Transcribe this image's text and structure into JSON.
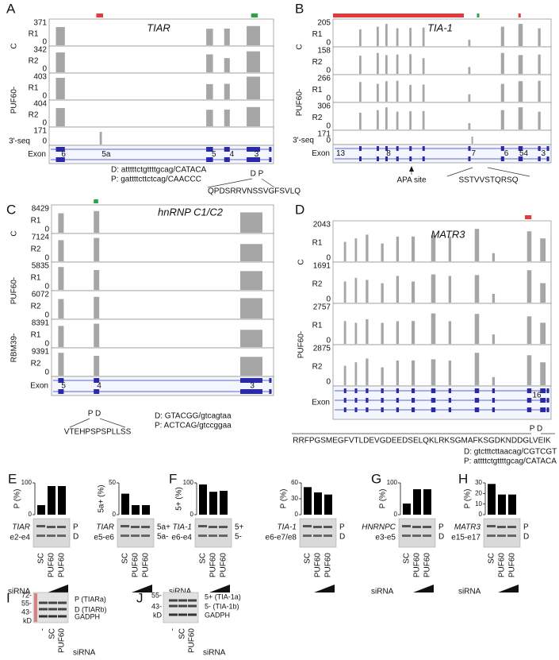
{
  "panels": {
    "A": {
      "letter": "A",
      "gene": "TIAR",
      "groups": [
        {
          "name": "C",
          "reps": [
            {
              "rep": "R1",
              "max": 371
            },
            {
              "rep": "R2",
              "max": 342
            }
          ]
        },
        {
          "name": "PUF60-",
          "reps": [
            {
              "rep": "R1",
              "max": 403
            },
            {
              "rep": "R2",
              "max": 404
            }
          ]
        }
      ],
      "seq": {
        "name": "3'-seq",
        "max": 171
      },
      "zero": "0",
      "exon": "Exon",
      "exons": [
        "6",
        "5a",
        "5",
        "4",
        "3"
      ],
      "splice": [
        "D: atttttctgttttgcag/CATACA",
        "P: gattttcttctcag/CAACCC"
      ],
      "sites": "D P",
      "peptide": "QPDSRRVNSSVGFSVLQ"
    },
    "B": {
      "letter": "B",
      "gene": "TIA-1",
      "groups": [
        {
          "name": "C",
          "reps": [
            {
              "rep": "R1",
              "max": 205
            },
            {
              "rep": "R2",
              "max": 158
            }
          ]
        },
        {
          "name": "PUF60-",
          "reps": [
            {
              "rep": "R1",
              "max": 266
            },
            {
              "rep": "R2",
              "max": 306
            }
          ]
        }
      ],
      "seq": {
        "name": "3'-seq",
        "max": 171
      },
      "zero": "0",
      "exon": "Exon",
      "exons": [
        "13",
        "8",
        "7",
        "6",
        "54",
        "3"
      ],
      "apa": "APA site",
      "peptide": "SSTVVSTQRSQ"
    },
    "C": {
      "letter": "C",
      "gene": "hnRNP C1/C2",
      "groups": [
        {
          "name": "C",
          "reps": [
            {
              "rep": "R1",
              "max": 8429
            },
            {
              "rep": "R2",
              "max": 7124
            }
          ]
        },
        {
          "name": "PUF60-",
          "reps": [
            {
              "rep": "R1",
              "max": 5835
            },
            {
              "rep": "R2",
              "max": 6072
            }
          ]
        },
        {
          "name": "RBM39-",
          "reps": [
            {
              "rep": "R1",
              "max": 8391
            },
            {
              "rep": "R2",
              "max": 9391
            }
          ]
        }
      ],
      "zero": "0",
      "exon": "Exon",
      "exons": [
        "5",
        "4",
        "3"
      ],
      "splice": [
        "D: GTACGG/gtcagtaa",
        "P: ACTCAG/gtccggaa"
      ],
      "sites": "P D",
      "peptide": "VTEHPSPSPLLSS"
    },
    "D": {
      "letter": "D",
      "gene": "MATR3",
      "groups": [
        {
          "name": "C",
          "reps": [
            {
              "rep": "R1",
              "max": 2043
            },
            {
              "rep": "R2",
              "max": 1691
            }
          ]
        },
        {
          "name": "PUF60-",
          "reps": [
            {
              "rep": "R1",
              "max": 2757
            },
            {
              "rep": "R2",
              "max": 2875
            }
          ]
        }
      ],
      "zero": "0",
      "exon": "Exon",
      "exons": [
        "16"
      ],
      "splice": [
        "D: gtctttcttaacag/CGTCGT",
        "P: attttctgttttgcag/CATACA"
      ],
      "sites": "P D",
      "peptide": "RRFPGSMEGFVTLDEVGDEEDSELQKLRKSGMAFKSGDKNDDGLVEIK"
    }
  },
  "bar_panels": [
    {
      "letter": "E",
      "charts": [
        {
          "ylabel": "P (%)",
          "ylim": [
            0,
            100
          ],
          "yticks": [
            0,
            100
          ],
          "values": [
            30,
            90,
            90
          ],
          "gene": "TIAR",
          "region": "e2-e4",
          "bands": [
            "P",
            "D"
          ]
        },
        {
          "ylabel": "5a+ (%)",
          "ylim": [
            0,
            50
          ],
          "yticks": [
            0,
            50
          ],
          "values": [
            33,
            15,
            15
          ],
          "gene": "TIAR",
          "region": "e5-e6",
          "bands": [
            "5a+",
            "5a-"
          ]
        }
      ]
    },
    {
      "letter": "F",
      "charts": [
        {
          "ylabel": "5+ (%)",
          "ylim": [
            0,
            100
          ],
          "yticks": [
            0,
            100
          ],
          "values": [
            95,
            72,
            75
          ],
          "gene": "TIA-1",
          "region": "e6-e4",
          "bands": [
            "5+",
            "5-"
          ]
        },
        {
          "ylabel": "P (%)",
          "ylim": [
            0,
            60
          ],
          "yticks": [
            0,
            30,
            60
          ],
          "values": [
            52,
            42,
            38
          ],
          "gene": "TIA-1",
          "region": "e6-e7/e8",
          "bands": [
            "P",
            "D"
          ]
        }
      ]
    },
    {
      "letter": "G",
      "charts": [
        {
          "ylabel": "P (%)",
          "ylim": [
            0,
            100
          ],
          "yticks": [
            0,
            100
          ],
          "values": [
            35,
            80,
            80
          ],
          "gene": "HNRNPC",
          "region": "e3-e5",
          "bands": [
            "P",
            "D"
          ]
        }
      ]
    },
    {
      "letter": "H",
      "charts": [
        {
          "ylabel": "P (%)",
          "ylim": [
            0,
            30
          ],
          "yticks": [
            0,
            10,
            20,
            30
          ],
          "values": [
            29,
            19,
            19
          ],
          "gene": "MATR3",
          "region": "e15-e17",
          "bands": [
            "P",
            "D"
          ]
        }
      ]
    }
  ],
  "sirna": "siRNA",
  "lanes": [
    "SC",
    "PUF60",
    "PUF60"
  ],
  "blots": [
    {
      "letter": "I",
      "markers": [
        "72-",
        "55-",
        "43-"
      ],
      "unit": "kD",
      "bands": [
        "P (TIARa)",
        "D (TIARb)",
        "GADPH"
      ],
      "lanes": [
        "-",
        "SC",
        "PUF60"
      ],
      "sirna": "siRNA"
    },
    {
      "letter": "J",
      "markers": [
        "55-",
        "43-"
      ],
      "unit": "kD",
      "bands": [
        "5+ (TIA-1a)",
        "5- (TIA-1b)",
        "GADPH"
      ],
      "lanes": [
        "-",
        "SC",
        "PUF60"
      ],
      "sirna": "siRNA"
    }
  ]
}
